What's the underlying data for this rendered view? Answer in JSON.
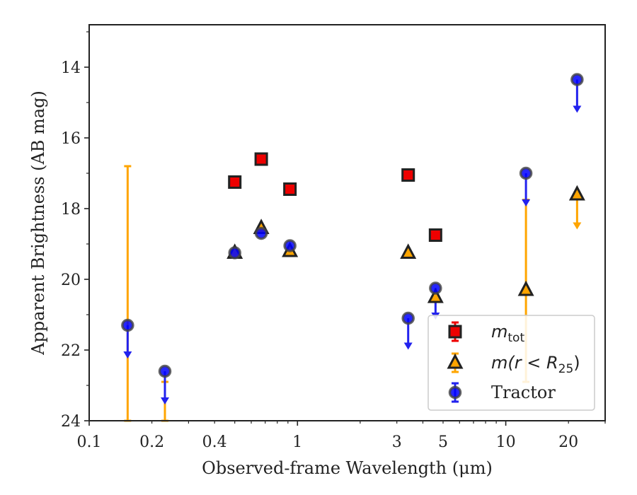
{
  "chart_data": {
    "type": "scatter",
    "xlabel": "Observed-frame Wavelength (μm)",
    "ylabel": "Apparent Brightness (AB mag)",
    "xscale": "log",
    "xlim": [
      0.1,
      30
    ],
    "ylim": [
      24,
      12.8
    ],
    "y_inverted": true,
    "x_ticks": [
      {
        "value": 0.1,
        "label": "0.1"
      },
      {
        "value": 0.2,
        "label": "0.2"
      },
      {
        "value": 0.4,
        "label": "0.4"
      },
      {
        "value": 1,
        "label": "1"
      },
      {
        "value": 3,
        "label": "3"
      },
      {
        "value": 5,
        "label": "5"
      },
      {
        "value": 10,
        "label": "10"
      },
      {
        "value": 20,
        "label": "20"
      }
    ],
    "y_ticks": [
      {
        "value": 14,
        "label": "14"
      },
      {
        "value": 16,
        "label": "16"
      },
      {
        "value": 18,
        "label": "18"
      },
      {
        "value": 20,
        "label": "20"
      },
      {
        "value": 22,
        "label": "22"
      },
      {
        "value": 24,
        "label": "24"
      }
    ],
    "grid": false,
    "legend_position": "lower-right",
    "series": [
      {
        "name": "m_tot",
        "legend_main": "m",
        "legend_sub": "tot",
        "marker": "square",
        "color": "#ee0000",
        "edge": "#222222",
        "points": [
          {
            "x": 0.5,
            "y": 17.25
          },
          {
            "x": 0.67,
            "y": 16.6
          },
          {
            "x": 0.92,
            "y": 17.45
          },
          {
            "x": 3.4,
            "y": 17.05
          },
          {
            "x": 4.6,
            "y": 18.75
          }
        ]
      },
      {
        "name": "m(r<R25)",
        "legend_main": "m(r < R",
        "legend_sub": "25",
        "legend_tail": ")",
        "marker": "triangle",
        "color": "#ffa500",
        "edge": "#222222",
        "points": [
          {
            "x": 0.5,
            "y": 19.25
          },
          {
            "x": 0.67,
            "y": 18.55
          },
          {
            "x": 0.92,
            "y": 19.2
          },
          {
            "x": 3.4,
            "y": 19.25
          },
          {
            "x": 4.6,
            "y": 20.5
          },
          {
            "x": 12.5,
            "y": 20.3,
            "err_low": 17.75,
            "err_high": 22.9
          },
          {
            "x": 22,
            "y": 17.6,
            "upper_limit_to": 18.55
          }
        ],
        "error_bars": [
          {
            "x": 0.153,
            "from": 16.8,
            "to": 24.2
          },
          {
            "x": 0.231,
            "from": 22.9,
            "to": 24.2
          }
        ]
      },
      {
        "name": "Tractor",
        "legend_main": "Tractor",
        "marker": "circle",
        "color": "#0000ff",
        "edge": "#444444",
        "points": [
          {
            "x": 0.153,
            "y": 21.3,
            "upper_limit_to": 22.2
          },
          {
            "x": 0.231,
            "y": 22.6,
            "upper_limit_to": 23.5
          },
          {
            "x": 0.5,
            "y": 19.25
          },
          {
            "x": 0.67,
            "y": 18.7
          },
          {
            "x": 0.92,
            "y": 19.05
          },
          {
            "x": 3.4,
            "y": 21.1,
            "upper_limit_to": 21.95
          },
          {
            "x": 4.6,
            "y": 20.25,
            "upper_limit_to": 21.1
          },
          {
            "x": 12.5,
            "y": 17.0,
            "upper_limit_to": 17.9
          },
          {
            "x": 22,
            "y": 14.35,
            "upper_limit_to": 15.25
          }
        ]
      }
    ]
  }
}
